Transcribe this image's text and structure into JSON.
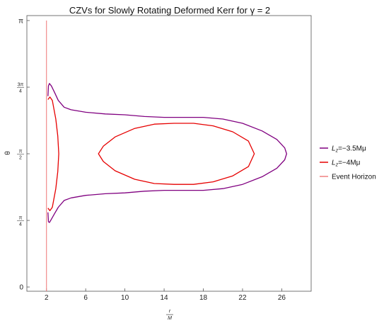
{
  "chart_data": {
    "type": "line",
    "title": "CZVs for Slowly Rotating Deformed Kerr for γ = 2",
    "xlabel": {
      "num": "r",
      "den": "M"
    },
    "ylabel": "θ",
    "xlim": [
      0,
      29
    ],
    "ylim": [
      -0.05,
      3.2
    ],
    "x_ticks": [
      {
        "value": 2,
        "label": "2"
      },
      {
        "value": 6,
        "label": "6"
      },
      {
        "value": 10,
        "label": "10"
      },
      {
        "value": 14,
        "label": "14"
      },
      {
        "value": 18,
        "label": "18"
      },
      {
        "value": 22,
        "label": "22"
      },
      {
        "value": 26,
        "label": "26"
      }
    ],
    "y_ticks": [
      {
        "value": 0,
        "label": "0"
      },
      {
        "value": 0.785,
        "pre": "",
        "num": "π",
        "den": "4"
      },
      {
        "value": 1.571,
        "pre": "",
        "num": "π",
        "den": "2"
      },
      {
        "value": 2.356,
        "pre": "",
        "num": "3π",
        "den": "4"
      },
      {
        "value": 3.1416,
        "label": "π"
      }
    ],
    "grid": false,
    "legend_position": "right",
    "colors": {
      "purple": "#800080",
      "red": "#e60000",
      "horizon": "#f08080"
    },
    "series": [
      {
        "name_parts": {
          "L": "L",
          "sub": "z",
          "rest": "=−3.5Mμ"
        },
        "color": "#800080",
        "outer": [
          [
            4.5,
            1.05
          ],
          [
            6,
            1.08
          ],
          [
            8,
            1.1
          ],
          [
            10,
            1.11
          ],
          [
            12,
            1.13
          ],
          [
            14,
            1.14
          ],
          [
            16,
            1.14
          ],
          [
            18,
            1.14
          ],
          [
            20,
            1.16
          ],
          [
            22,
            1.21
          ],
          [
            24,
            1.3
          ],
          [
            25.5,
            1.4
          ],
          [
            26.3,
            1.5
          ],
          [
            26.5,
            1.571
          ],
          [
            26.3,
            1.64
          ],
          [
            25.5,
            1.74
          ],
          [
            24,
            1.84
          ],
          [
            22,
            1.93
          ],
          [
            20,
            1.98
          ],
          [
            18,
            2.0
          ],
          [
            16,
            2.0
          ],
          [
            14,
            2.0
          ],
          [
            12,
            2.01
          ],
          [
            10,
            2.03
          ],
          [
            8,
            2.04
          ],
          [
            6,
            2.06
          ],
          [
            4.5,
            2.09
          ]
        ],
        "throat_top": [
          [
            4.5,
            2.09
          ],
          [
            3.8,
            2.12
          ],
          [
            3.2,
            2.2
          ],
          [
            2.8,
            2.3
          ],
          [
            2.5,
            2.37
          ],
          [
            2.3,
            2.4
          ],
          [
            2.2,
            2.37
          ],
          [
            2.15,
            2.25
          ]
        ],
        "throat_bottom": [
          [
            4.5,
            1.05
          ],
          [
            3.8,
            1.02
          ],
          [
            3.2,
            0.94
          ],
          [
            2.8,
            0.86
          ],
          [
            2.5,
            0.8
          ],
          [
            2.3,
            0.76
          ],
          [
            2.2,
            0.77
          ],
          [
            2.15,
            0.88
          ]
        ]
      },
      {
        "name_parts": {
          "L": "L",
          "sub": "z",
          "rest": "=−4Mμ"
        },
        "color": "#e60000",
        "outer": [
          [
            7.3,
            1.571
          ],
          [
            7.8,
            1.48
          ],
          [
            9,
            1.37
          ],
          [
            11,
            1.27
          ],
          [
            13,
            1.22
          ],
          [
            15,
            1.21
          ],
          [
            17,
            1.21
          ],
          [
            19,
            1.24
          ],
          [
            21,
            1.31
          ],
          [
            22.6,
            1.42
          ],
          [
            23.2,
            1.571
          ],
          [
            22.6,
            1.72
          ],
          [
            21,
            1.83
          ],
          [
            19,
            1.9
          ],
          [
            17,
            1.93
          ],
          [
            15,
            1.93
          ],
          [
            13,
            1.92
          ],
          [
            11,
            1.87
          ],
          [
            9,
            1.77
          ],
          [
            7.8,
            1.66
          ]
        ],
        "lobe": [
          [
            2.15,
            2.21
          ],
          [
            2.35,
            2.24
          ],
          [
            2.6,
            2.2
          ],
          [
            2.95,
            1.98
          ],
          [
            3.15,
            1.78
          ],
          [
            3.25,
            1.571
          ],
          [
            3.15,
            1.36
          ],
          [
            2.95,
            1.16
          ],
          [
            2.6,
            0.94
          ],
          [
            2.35,
            0.9
          ],
          [
            2.15,
            0.93
          ]
        ]
      },
      {
        "name": "Event Horizon",
        "color": "#f08080",
        "x": 2
      }
    ]
  }
}
